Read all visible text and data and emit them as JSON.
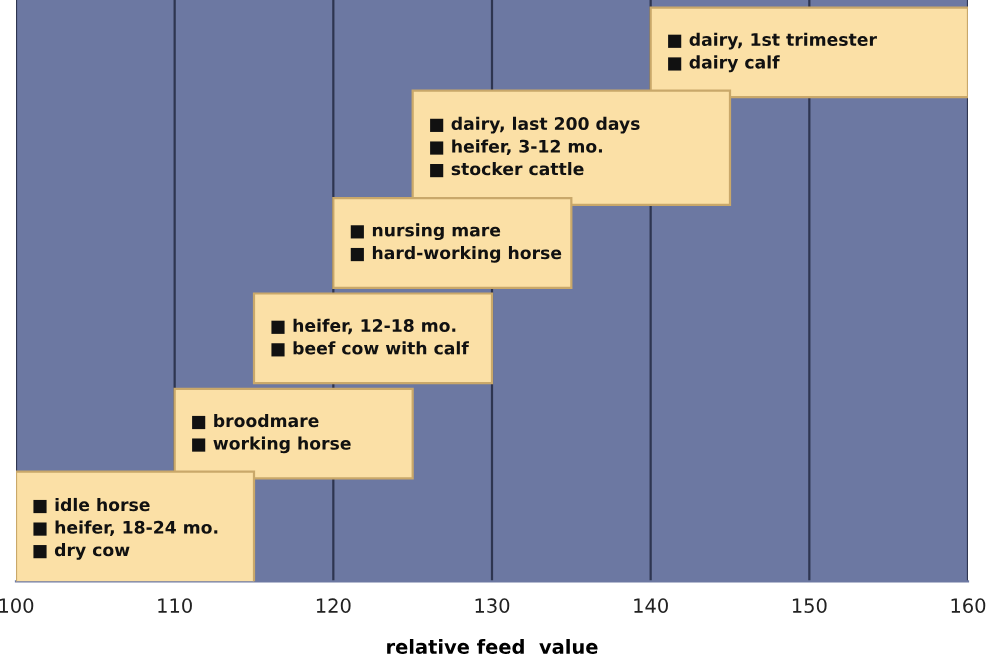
{
  "chart_data": {
    "type": "bar",
    "orientation": "horizontal",
    "xlabel": "relative feed  value",
    "categories": [
      "■ dairy, 1st trimester\n■ dairy calf",
      "■ dairy, last 200 days\n■ heifer, 3-12 mo.\n■ stocker cattle",
      "■ nursing mare\n■ hard-working horse",
      "■ heifer, 12-18 mo.\n■ beef cow with calf",
      "■ broodmare\n■ working horse",
      "■ idle horse\n■ heifer, 18-24 mo.\n■ dry cow"
    ],
    "base": [
      140,
      125,
      120,
      115,
      110,
      100
    ],
    "values": [
      20,
      20,
      15,
      15,
      15,
      15
    ],
    "color": "#fbe0a6",
    "xlim": [
      100,
      160
    ],
    "xticks": [
      100,
      110,
      120,
      130,
      140,
      150,
      160
    ],
    "grid": "x"
  }
}
